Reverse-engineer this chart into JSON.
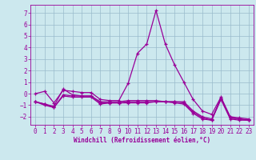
{
  "xlabel": "Windchill (Refroidissement éolien,°C)",
  "background_color": "#cce8ee",
  "grid_color": "#99bbcc",
  "line_color": "#990099",
  "xlim": [
    -0.5,
    23.5
  ],
  "ylim": [
    -2.7,
    7.7
  ],
  "yticks": [
    -2,
    -1,
    0,
    1,
    2,
    3,
    4,
    5,
    6,
    7
  ],
  "xticks": [
    0,
    1,
    2,
    3,
    4,
    5,
    6,
    7,
    8,
    9,
    10,
    11,
    12,
    13,
    14,
    15,
    16,
    17,
    18,
    19,
    20,
    21,
    22,
    23
  ],
  "series": [
    [
      0.0,
      0.2,
      -0.8,
      0.3,
      0.2,
      0.1,
      0.1,
      -0.5,
      -0.6,
      -0.6,
      0.9,
      3.5,
      4.3,
      7.2,
      4.3,
      2.5,
      1.0,
      -0.5,
      -1.5,
      -1.8,
      -0.3,
      -2.0,
      -2.1,
      -2.2
    ],
    [
      -0.7,
      -0.9,
      -1.1,
      0.4,
      -0.1,
      -0.2,
      -0.2,
      -0.7,
      -0.7,
      -0.7,
      -0.6,
      -0.6,
      -0.6,
      -0.6,
      -0.7,
      -0.7,
      -0.7,
      -1.5,
      -2.0,
      -2.2,
      -0.4,
      -2.1,
      -2.2,
      -2.3
    ],
    [
      -0.7,
      -0.9,
      -1.2,
      -0.1,
      -0.2,
      -0.2,
      -0.2,
      -0.8,
      -0.8,
      -0.8,
      -0.7,
      -0.7,
      -0.7,
      -0.7,
      -0.7,
      -0.7,
      -0.8,
      -1.6,
      -2.1,
      -2.3,
      -0.4,
      -2.1,
      -2.2,
      -2.3
    ],
    [
      -0.7,
      -1.0,
      -1.2,
      -0.2,
      -0.3,
      -0.3,
      -0.3,
      -0.9,
      -0.8,
      -0.8,
      -0.8,
      -0.8,
      -0.8,
      -0.7,
      -0.7,
      -0.8,
      -0.9,
      -1.7,
      -2.2,
      -2.3,
      -0.5,
      -2.2,
      -2.3,
      -2.3
    ]
  ],
  "tick_labelsize": 5.5,
  "xlabel_fontsize": 5.5,
  "marker_size": 3.0,
  "line_width": 0.9
}
